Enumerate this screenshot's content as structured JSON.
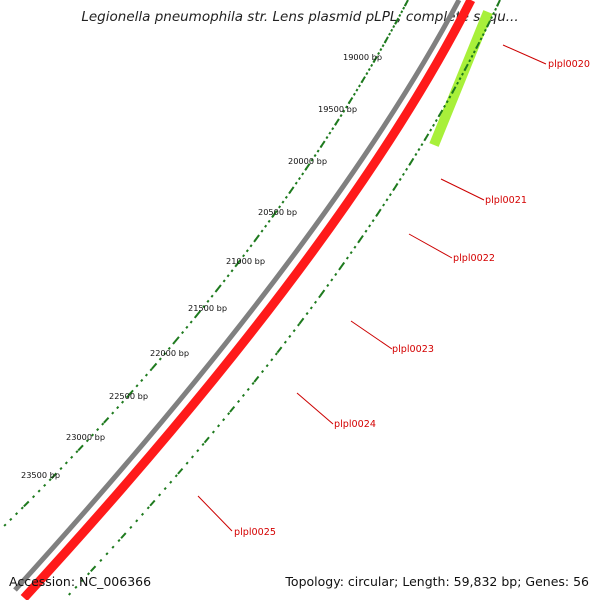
{
  "title": "Legionella pneumophila str. Lens plasmid pLPL, complete sequ...",
  "footer": {
    "accession": "Accession: NC_006366",
    "summary": "Topology: circular; Length: 59,832 bp; Genes: 56"
  },
  "colors": {
    "backbone": "#808080",
    "gene_forward": "#ff0000",
    "gene_highlight": "#a8f03a",
    "gene_label": "#d40000",
    "tick_marks": "#1e7a1e"
  },
  "bp_ticks": [
    "19000 bp",
    "19500 bp",
    "20000 bp",
    "20500 bp",
    "21000 bp",
    "21500 bp",
    "22000 bp",
    "22500 bp",
    "23000 bp",
    "23500 bp"
  ],
  "genes": [
    {
      "name": "plpl0020",
      "highlight": true
    },
    {
      "name": "plpl0021",
      "highlight": false
    },
    {
      "name": "plpl0022",
      "highlight": false
    },
    {
      "name": "plpl0023",
      "highlight": false
    },
    {
      "name": "plpl0024",
      "highlight": false
    },
    {
      "name": "plpl0025",
      "highlight": false
    }
  ]
}
